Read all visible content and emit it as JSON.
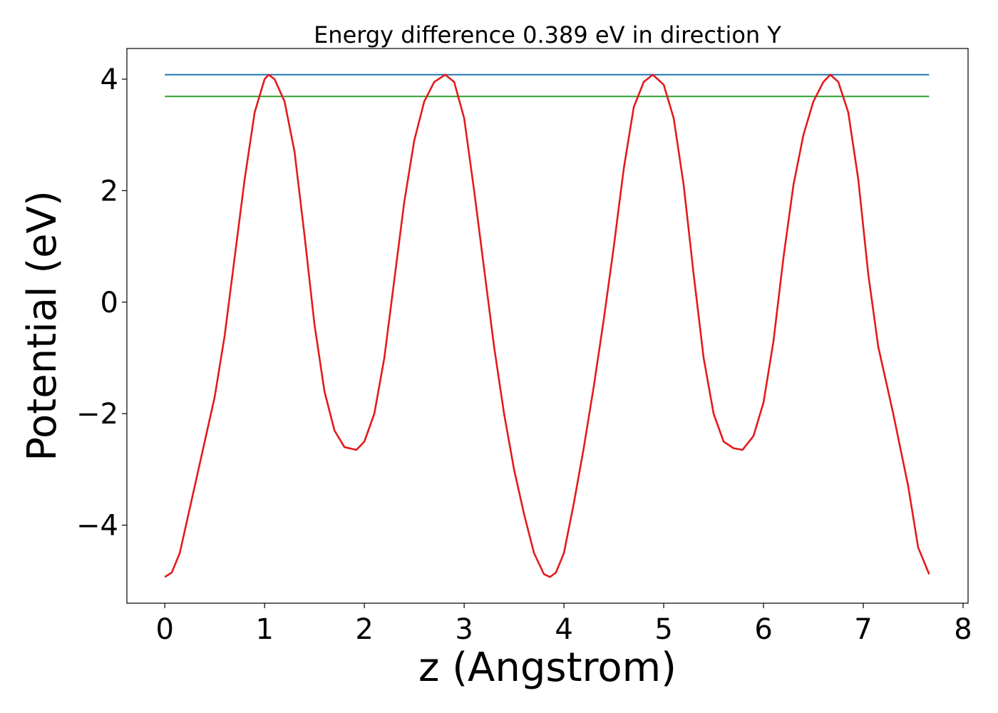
{
  "chart_data": {
    "type": "line",
    "title": "Energy difference 0.389 eV in direction Y",
    "xlabel": "z (Angstrom)",
    "ylabel": "Potential (eV)",
    "xlim": [
      -0.38,
      8.05
    ],
    "ylim": [
      -5.4,
      4.55
    ],
    "xticks": [
      0,
      1,
      2,
      3,
      4,
      5,
      6,
      7,
      8
    ],
    "xtick_labels": [
      "0",
      "1",
      "2",
      "3",
      "4",
      "5",
      "6",
      "7",
      "8"
    ],
    "yticks": [
      -4,
      -2,
      0,
      2,
      4
    ],
    "ytick_labels": [
      "−4",
      "−2",
      "0",
      "2",
      "4"
    ],
    "grid": false,
    "series": [
      {
        "color": "#1f77b4",
        "x": [
          0,
          7.66
        ],
        "y": [
          4.08,
          4.08
        ]
      },
      {
        "color": "#2ca02c",
        "x": [
          0,
          7.66
        ],
        "y": [
          3.69,
          3.69
        ]
      },
      {
        "color": "#e41a1c",
        "x": [
          0,
          0.07,
          0.15,
          0.3,
          0.5,
          0.6,
          0.7,
          0.8,
          0.9,
          1.0,
          1.04,
          1.1,
          1.2,
          1.3,
          1.4,
          1.5,
          1.6,
          1.7,
          1.8,
          1.92,
          2.0,
          2.1,
          2.2,
          2.3,
          2.4,
          2.5,
          2.6,
          2.7,
          2.81,
          2.9,
          3.0,
          3.1,
          3.2,
          3.3,
          3.4,
          3.5,
          3.6,
          3.7,
          3.8,
          3.86,
          3.92,
          4.0,
          4.1,
          4.2,
          4.3,
          4.4,
          4.5,
          4.6,
          4.7,
          4.8,
          4.89,
          5.0,
          5.1,
          5.2,
          5.3,
          5.4,
          5.5,
          5.6,
          5.7,
          5.79,
          5.9,
          6.0,
          6.1,
          6.2,
          6.3,
          6.4,
          6.5,
          6.6,
          6.67,
          6.75,
          6.85,
          6.95,
          7.05,
          7.15,
          7.3,
          7.45,
          7.55,
          7.66
        ],
        "y": [
          -4.93,
          -4.85,
          -4.5,
          -3.3,
          -1.7,
          -0.6,
          0.8,
          2.2,
          3.4,
          4.0,
          4.08,
          4.0,
          3.6,
          2.7,
          1.2,
          -0.4,
          -1.6,
          -2.3,
          -2.6,
          -2.65,
          -2.5,
          -2.0,
          -1.0,
          0.4,
          1.8,
          2.9,
          3.6,
          3.95,
          4.08,
          3.95,
          3.3,
          2.0,
          0.6,
          -0.8,
          -2.0,
          -3.0,
          -3.8,
          -4.5,
          -4.88,
          -4.93,
          -4.85,
          -4.5,
          -3.6,
          -2.6,
          -1.5,
          -0.3,
          1.0,
          2.4,
          3.5,
          3.95,
          4.08,
          3.9,
          3.3,
          2.1,
          0.5,
          -1.0,
          -2.0,
          -2.5,
          -2.62,
          -2.65,
          -2.4,
          -1.8,
          -0.7,
          0.8,
          2.1,
          3.0,
          3.6,
          3.95,
          4.08,
          3.95,
          3.4,
          2.2,
          0.5,
          -0.8,
          -2.0,
          -3.3,
          -4.4,
          -4.88
        ]
      }
    ]
  }
}
